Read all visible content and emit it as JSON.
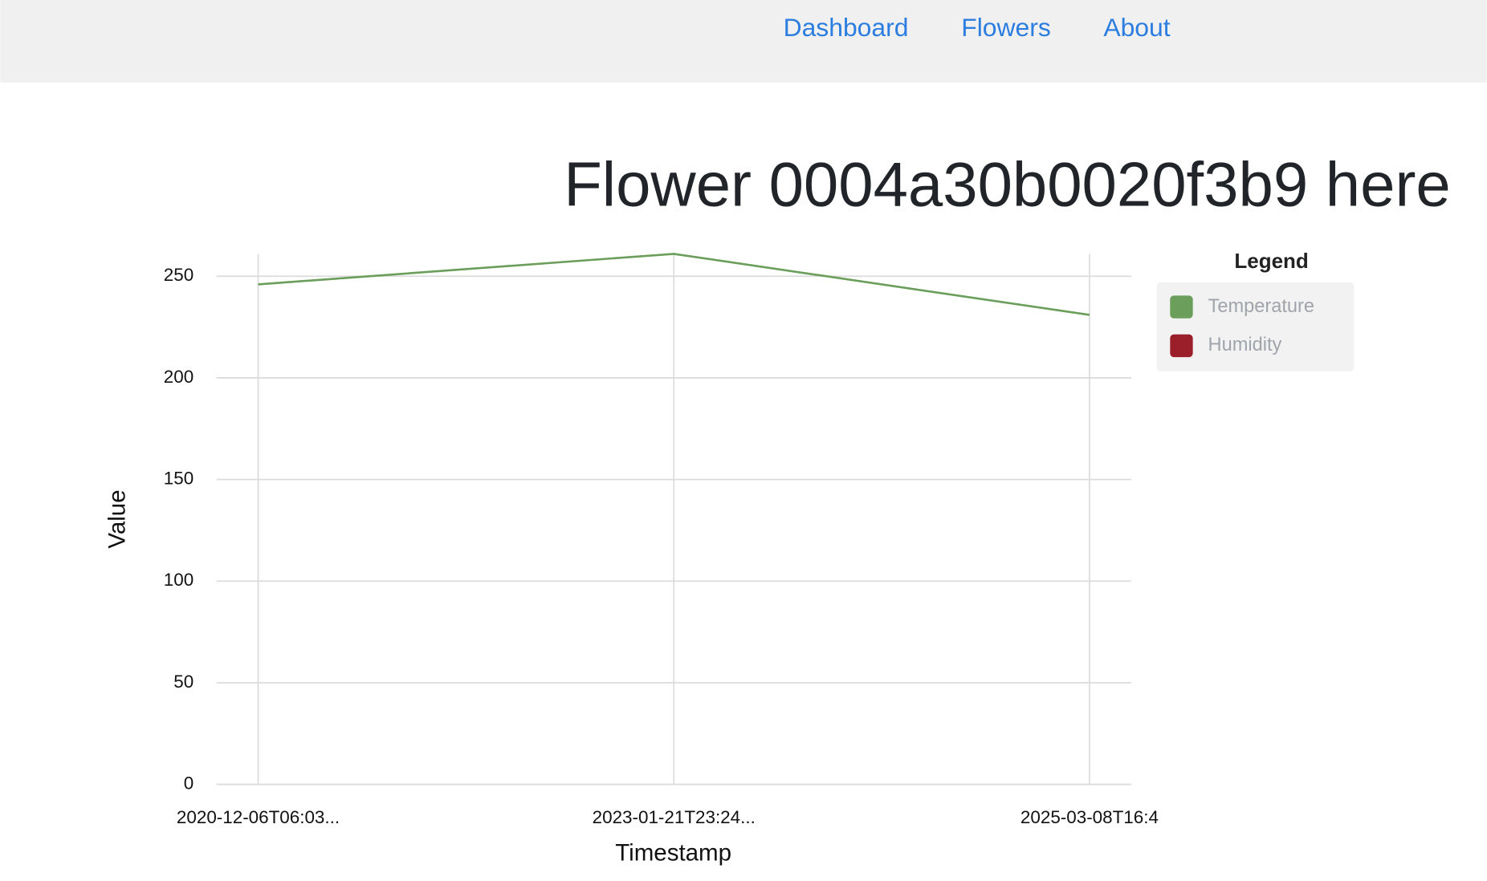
{
  "nav": {
    "links": [
      "Dashboard",
      "Flowers",
      "About"
    ]
  },
  "heading": "Flower 0004a30b0020f3b9 here",
  "chart_data": {
    "type": "line",
    "categories": [
      "2020-12-06T06:03...",
      "2023-01-21T23:24...",
      "2025-03-08T16:4"
    ],
    "series": [
      {
        "name": "Temperature",
        "color": "#6a9e5a",
        "values": [
          246,
          261,
          231
        ]
      },
      {
        "name": "Humidity",
        "color": "#9b1f2a",
        "values": [
          null,
          null,
          null
        ]
      }
    ],
    "ylim": [
      0,
      261
    ],
    "yticks": [
      0,
      50,
      100,
      150,
      200,
      250
    ],
    "grid": true,
    "xlabel": "Timestamp",
    "ylabel": "Value",
    "legend_title": "Legend",
    "legend": "right"
  }
}
